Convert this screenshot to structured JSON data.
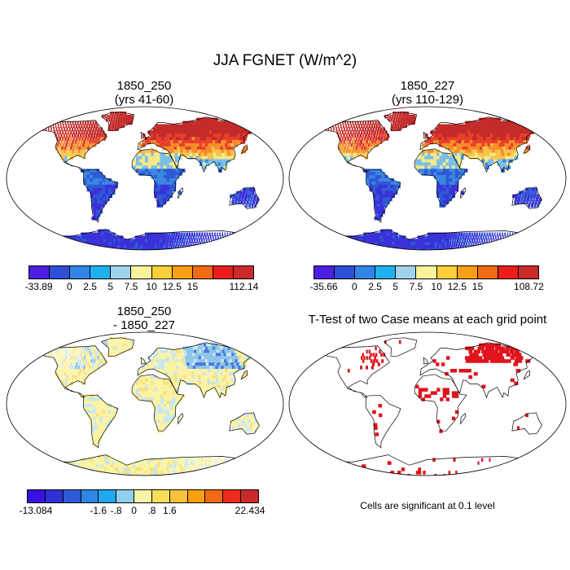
{
  "figure": {
    "title": "JJA FGNET (W/m^2)",
    "panels": [
      {
        "id": "case1",
        "title_line1": "1850_250",
        "title_line2": "(yrs 41-60)",
        "colorbar": {
          "colors": [
            "#4b1fe6",
            "#2e50d8",
            "#2f86e6",
            "#1fb0ef",
            "#9fd3ec",
            "#f9f29b",
            "#fbcf38",
            "#f9a012",
            "#f26a14",
            "#ee1c1c",
            "#cc2a2a"
          ],
          "labels": [
            "-33.89",
            "0",
            "2.5",
            "5",
            "7.5",
            "10",
            "12.5",
            "15",
            "112.14"
          ]
        },
        "map_palette": [
          "#3a32d8",
          "#2f5ad6",
          "#3b86e2",
          "#7bbfe8",
          "#f5e98a",
          "#f8c34a",
          "#f58e2a",
          "#e8412a",
          "#c42b2b"
        ]
      },
      {
        "id": "case2",
        "title_line1": "1850_227",
        "title_line2": "(yrs 110-129)",
        "colorbar": {
          "colors": [
            "#4b1fe6",
            "#2e50d8",
            "#2f86e6",
            "#1fb0ef",
            "#9fd3ec",
            "#f9f29b",
            "#fbcf38",
            "#f9a012",
            "#f26a14",
            "#ee1c1c",
            "#cc2a2a"
          ],
          "labels": [
            "-35.66",
            "0",
            "2.5",
            "5",
            "7.5",
            "10",
            "12.5",
            "15",
            "108.72"
          ]
        },
        "map_palette": [
          "#3a32d8",
          "#2f5ad6",
          "#3b86e2",
          "#7bbfe8",
          "#f5e98a",
          "#f8c34a",
          "#f58e2a",
          "#e8412a",
          "#c42b2b"
        ]
      },
      {
        "id": "diff",
        "title_line1": "1850_250",
        "title_line2": "- 1850_227",
        "colorbar": {
          "colors": [
            "#3a10e0",
            "#3030d8",
            "#2f5ad6",
            "#2f86e6",
            "#1fa8ee",
            "#8fd0ec",
            "#fbf3a5",
            "#f9de5c",
            "#fbc33a",
            "#f9a012",
            "#f26a14",
            "#ee2a1c",
            "#cc2a2a"
          ],
          "labels": [
            "-13.084",
            "-1.6",
            "-.8",
            "0",
            ".8",
            "1.6",
            "22.434"
          ]
        },
        "map_palette": [
          "#2f3fd0",
          "#4a78dc",
          "#8fc6ea",
          "#c8e7f0",
          "#fbf3a5",
          "#f9e07a",
          "#f7b24a",
          "#e8412a"
        ]
      },
      {
        "id": "ttest",
        "title_line1": "T-Test of two Case means at each grid point",
        "note": "Cells are significant at 0.1 level",
        "map_palette": [
          "#e0141c"
        ]
      }
    ]
  }
}
